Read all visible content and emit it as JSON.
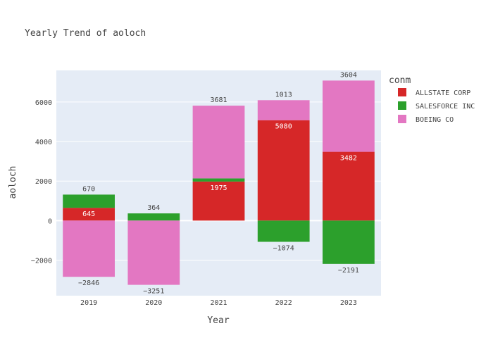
{
  "chart_data": {
    "type": "bar",
    "barmode": "relative",
    "title": "Yearly Trend of aoloch",
    "xlabel": "Year",
    "ylabel": "aoloch",
    "categories": [
      "2019",
      "2020",
      "2021",
      "2022",
      "2023"
    ],
    "ylim": [
      -3800,
      7600
    ],
    "yticks": [
      -2000,
      0,
      2000,
      4000,
      6000
    ],
    "legend": {
      "title": "conm",
      "position": "right"
    },
    "series": [
      {
        "name": "ALLSTATE CORP",
        "color": "#d62728",
        "values": [
          645,
          null,
          1975,
          5080,
          3482
        ],
        "labels": [
          "645",
          "",
          "1975",
          "5080",
          "3482"
        ]
      },
      {
        "name": "SALESFORCE INC",
        "color": "#2ca02c",
        "values": [
          670,
          364,
          160,
          -1074,
          -2191
        ],
        "labels": [
          "670",
          "364",
          "",
          "−1074",
          "−2191"
        ]
      },
      {
        "name": "BOEING CO",
        "color": "#e377c2",
        "values": [
          -2846,
          -3251,
          3681,
          1013,
          3604
        ],
        "labels": [
          "−2846",
          "−3251",
          "3681",
          "1013",
          "3604"
        ]
      }
    ]
  }
}
